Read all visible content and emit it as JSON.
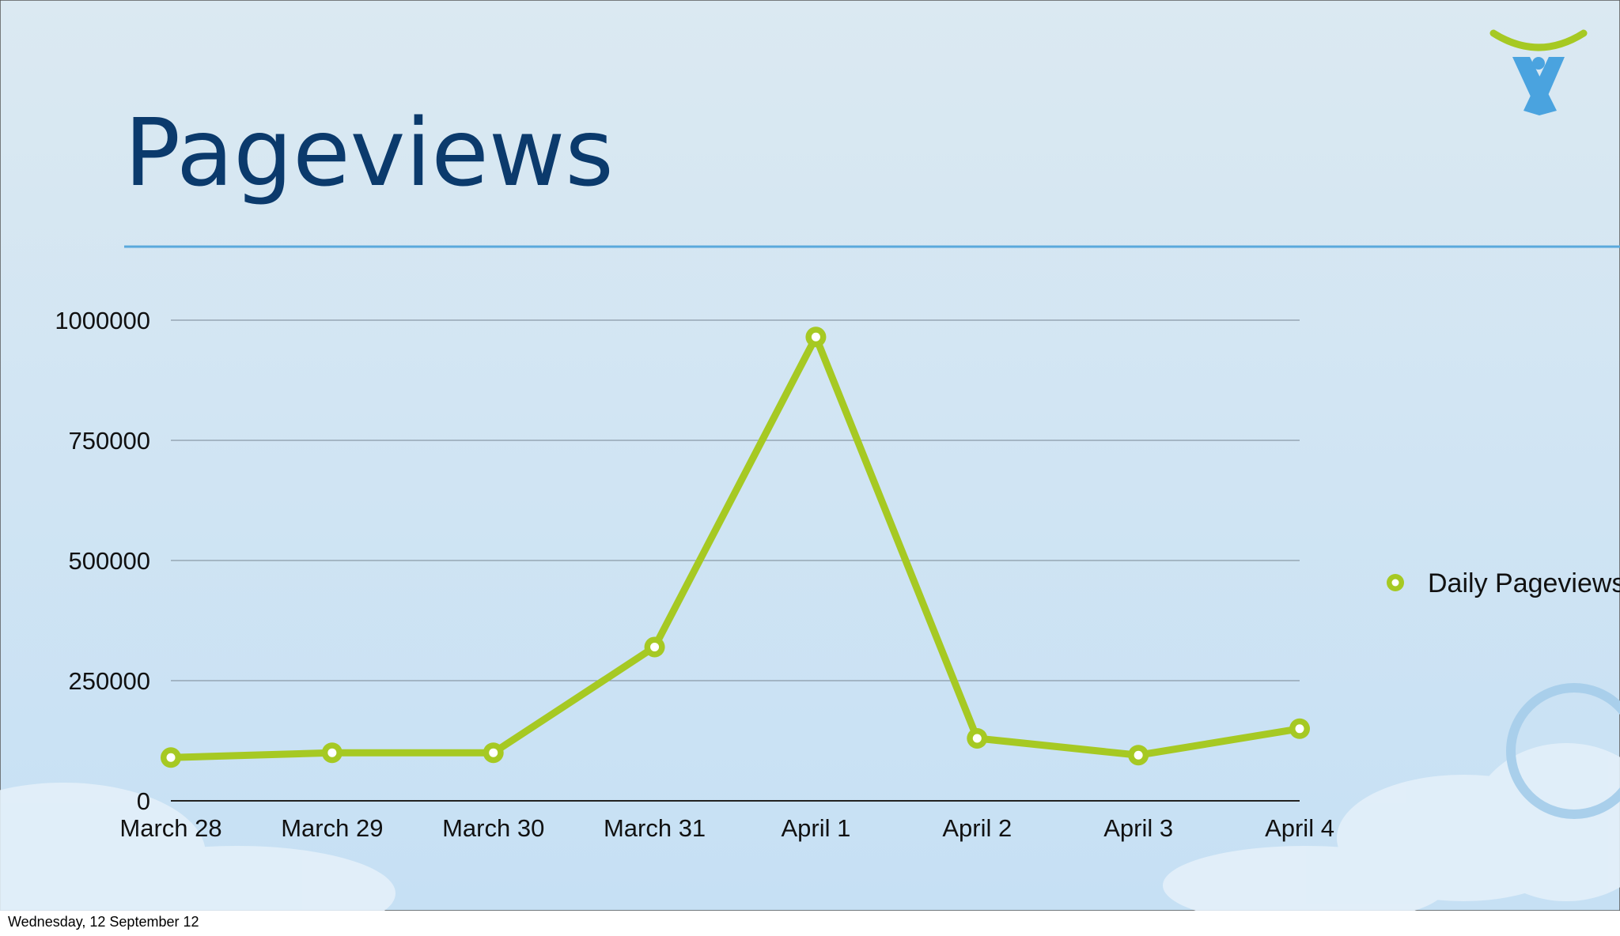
{
  "chart_data": {
    "type": "line",
    "title": "Pageviews",
    "categories": [
      "March 28",
      "March 29",
      "March 30",
      "March 31",
      "April 1",
      "April 2",
      "April 3",
      "April 4"
    ],
    "series": [
      {
        "name": "Daily Pageviews",
        "color": "#a6c923",
        "values": [
          90000,
          100000,
          100000,
          320000,
          965000,
          130000,
          95000,
          150000
        ]
      }
    ],
    "ylim": [
      0,
      1000000
    ],
    "yticks": [
      0,
      250000,
      500000,
      750000,
      1000000
    ],
    "grid": true,
    "legend": "right"
  },
  "footer": "Wednesday, 12 September 12"
}
